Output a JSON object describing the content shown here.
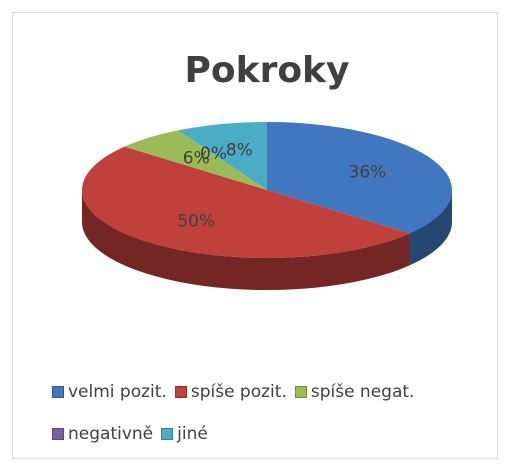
{
  "chart_data": {
    "type": "pie",
    "title": "Pokroky",
    "categories": [
      "velmi pozit.",
      "spíše pozit.",
      "spíše negat.",
      "negativně",
      "jiné"
    ],
    "values": [
      36,
      50,
      6,
      0,
      8
    ],
    "value_labels": [
      "36%",
      "50%",
      "6%",
      "0%",
      "8%"
    ],
    "colors": [
      "#4177c0",
      "#c0403c",
      "#9bbb59",
      "#7d60a0",
      "#4bacc6"
    ]
  }
}
